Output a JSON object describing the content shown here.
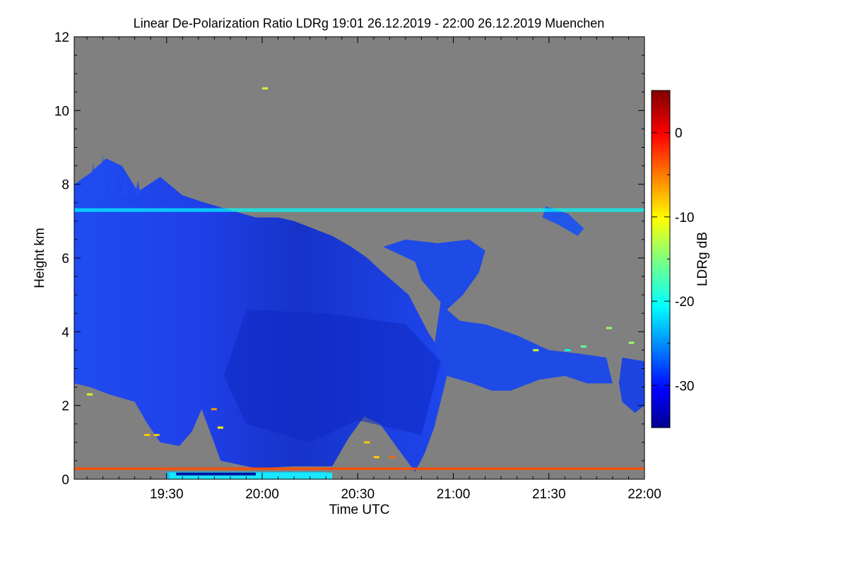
{
  "chart_data": {
    "type": "heatmap",
    "title": "Linear De-Polarization Ratio LDRg   19:01 26.12.2019 - 22:00 26.12.2019 Muenchen",
    "xlabel": "Time UTC",
    "ylabel": "Height km",
    "x_range": [
      "19:01",
      "22:00"
    ],
    "y_range": [
      0,
      12
    ],
    "x_ticks": [
      {
        "label": "19:30",
        "value": "19:30"
      },
      {
        "label": "20:00",
        "value": "20:00"
      },
      {
        "label": "20:30",
        "value": "20:30"
      },
      {
        "label": "21:00",
        "value": "21:00"
      },
      {
        "label": "21:30",
        "value": "21:30"
      },
      {
        "label": "22:00",
        "value": "22:00"
      }
    ],
    "y_ticks": [
      0,
      2,
      4,
      6,
      8,
      10,
      12
    ],
    "colorbar": {
      "label": "LDRg dB",
      "range": [
        -35,
        5
      ],
      "ticks": [
        0,
        -10,
        -20,
        -30
      ],
      "colormap": "jet"
    },
    "no_data_color": "#808080",
    "cloud_regions": [
      {
        "name": "main cloud",
        "start": "19:01",
        "end": "20:58",
        "base_km": 0.4,
        "top_km": 8.6,
        "ldr_db": -31
      },
      {
        "name": "cloud extension",
        "start": "20:58",
        "end": "21:50",
        "base_km": 2.5,
        "top_km": 6.5,
        "ldr_db": -31
      },
      {
        "name": "lower cloud",
        "start": "21:50",
        "end": "22:00",
        "base_km": 1.8,
        "top_km": 3.3,
        "ldr_db": -31
      },
      {
        "name": "horizontal layer",
        "start": "19:01",
        "end": "22:00",
        "base_km": 7.25,
        "top_km": 7.35,
        "ldr_db": -20
      },
      {
        "name": "near-surface layer",
        "start": "19:01",
        "end": "22:00",
        "base_km": 0.25,
        "top_km": 0.32,
        "ldr_db": -3
      },
      {
        "name": "surface layer",
        "start": "19:30",
        "end": "20:20",
        "base_km": 0.0,
        "top_km": 0.2,
        "ldr_db": -22
      }
    ]
  }
}
